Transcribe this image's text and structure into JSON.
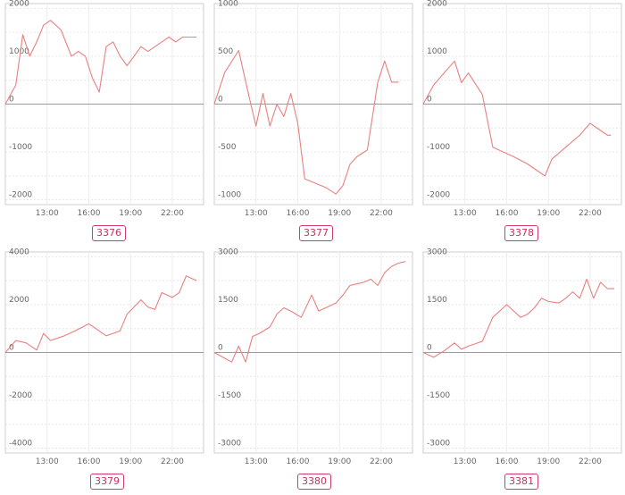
{
  "chart_data": [
    {
      "type": "line",
      "id_label": "3376",
      "y_ticks": [
        "2000",
        "1000",
        "0",
        "-1000",
        "-2000"
      ],
      "x_ticks": [
        "13:00",
        "16:00",
        "19:00",
        "22:00"
      ],
      "ylim": [
        -2100,
        2100
      ],
      "xlim": [
        10.0,
        24.25
      ],
      "grid": true,
      "x": [
        10.0,
        10.75,
        11.25,
        11.75,
        12.25,
        12.75,
        13.25,
        14.0,
        14.75,
        15.25,
        15.75,
        16.25,
        16.75,
        17.25,
        17.75,
        18.25,
        18.75,
        19.25,
        19.75,
        20.25,
        20.75,
        21.25,
        21.75,
        22.25,
        22.75,
        23.25,
        23.75
      ],
      "y": [
        0,
        400,
        1450,
        1000,
        1300,
        1650,
        1750,
        1550,
        1000,
        1100,
        1000,
        550,
        250,
        1200,
        1300,
        1000,
        800,
        1000,
        1200,
        1100,
        1200,
        1300,
        1400,
        1300,
        1400,
        1400,
        1400
      ],
      "series": [
        {
          "color": "#e8807f"
        }
      ]
    },
    {
      "type": "line",
      "id_label": "3377",
      "y_ticks": [
        "1000",
        "500",
        "0",
        "-500",
        "-1000"
      ],
      "x_ticks": [
        "13:00",
        "16:00",
        "19:00",
        "22:00"
      ],
      "ylim": [
        -1050,
        1050
      ],
      "xlim": [
        10.0,
        24.25
      ],
      "grid": true,
      "x": [
        10.0,
        10.75,
        11.75,
        12.5,
        13.0,
        13.5,
        14.0,
        14.5,
        15.0,
        15.5,
        16.0,
        16.5,
        18.0,
        18.75,
        19.25,
        19.75,
        20.25,
        21.0,
        21.75,
        22.25,
        22.75,
        23.25
      ],
      "y": [
        0,
        330,
        560,
        80,
        -230,
        110,
        -230,
        0,
        -130,
        110,
        -200,
        -780,
        -870,
        -940,
        -850,
        -630,
        -550,
        -480,
        230,
        450,
        230,
        230
      ],
      "series": [
        {
          "color": "#e8807f"
        }
      ]
    },
    {
      "type": "line",
      "id_label": "3378",
      "y_ticks": [
        "2000",
        "1000",
        "0",
        "-1000",
        "-2000"
      ],
      "x_ticks": [
        "13:00",
        "16:00",
        "19:00",
        "22:00"
      ],
      "ylim": [
        -2100,
        2100
      ],
      "xlim": [
        10.0,
        24.25
      ],
      "grid": true,
      "x": [
        10.0,
        10.75,
        11.5,
        12.25,
        12.75,
        13.25,
        14.25,
        15.0,
        16.5,
        17.5,
        18.25,
        18.75,
        19.25,
        20.25,
        21.25,
        22.0,
        22.75,
        23.25,
        23.5
      ],
      "y": [
        0,
        400,
        650,
        900,
        450,
        650,
        200,
        -900,
        -1100,
        -1250,
        -1400,
        -1500,
        -1150,
        -900,
        -650,
        -400,
        -550,
        -650,
        -650
      ],
      "series": [
        {
          "color": "#e8807f"
        }
      ]
    },
    {
      "type": "line",
      "id_label": "3379",
      "y_ticks": [
        "4000",
        "2000",
        "0",
        "-2000",
        "-4000"
      ],
      "x_ticks": [
        "13:00",
        "16:00",
        "19:00",
        "22:00"
      ],
      "ylim": [
        -4200,
        4200
      ],
      "xlim": [
        10.0,
        24.25
      ],
      "grid": true,
      "x": [
        10.0,
        10.75,
        11.5,
        12.25,
        12.75,
        13.25,
        14.25,
        15.0,
        16.0,
        16.5,
        17.25,
        18.25,
        18.75,
        19.25,
        19.75,
        20.25,
        20.75,
        21.25,
        22.0,
        22.5,
        23.0,
        23.75
      ],
      "y": [
        0,
        500,
        400,
        100,
        800,
        500,
        700,
        900,
        1200,
        1000,
        700,
        900,
        1600,
        1900,
        2200,
        1900,
        1800,
        2500,
        2300,
        2500,
        3200,
        3000
      ],
      "series": [
        {
          "color": "#e8807f"
        }
      ]
    },
    {
      "type": "line",
      "id_label": "3380",
      "y_ticks": [
        "3000",
        "1500",
        "0",
        "-1500",
        "-3000"
      ],
      "x_ticks": [
        "13:00",
        "16:00",
        "19:00",
        "22:00"
      ],
      "ylim": [
        -3150,
        3150
      ],
      "xlim": [
        10.0,
        24.25
      ],
      "grid": true,
      "x": [
        10.0,
        11.25,
        11.75,
        12.25,
        12.75,
        13.25,
        14.0,
        14.5,
        15.0,
        15.5,
        16.25,
        17.0,
        17.5,
        18.25,
        18.75,
        19.25,
        19.75,
        20.25,
        20.75,
        21.25,
        21.75,
        22.25,
        22.75,
        23.25,
        23.75
      ],
      "y": [
        0,
        -300,
        200,
        -300,
        500,
        600,
        800,
        1200,
        1400,
        1300,
        1100,
        1800,
        1300,
        1450,
        1550,
        1800,
        2100,
        2150,
        2200,
        2300,
        2100,
        2500,
        2700,
        2800,
        2850
      ],
      "series": [
        {
          "color": "#e8807f"
        }
      ]
    },
    {
      "type": "line",
      "id_label": "3381",
      "y_ticks": [
        "3000",
        "1500",
        "0",
        "-1500",
        "-3000"
      ],
      "x_ticks": [
        "13:00",
        "16:00",
        "19:00",
        "22:00"
      ],
      "ylim": [
        -3150,
        3150
      ],
      "xlim": [
        10.0,
        24.25
      ],
      "grid": true,
      "x": [
        10.0,
        10.75,
        11.5,
        12.25,
        12.75,
        13.25,
        14.25,
        15.0,
        15.5,
        16.0,
        16.5,
        17.0,
        17.5,
        18.0,
        18.5,
        19.0,
        19.75,
        20.25,
        20.75,
        21.25,
        21.75,
        22.25,
        22.75,
        23.25,
        23.75
      ],
      "y": [
        0,
        -150,
        50,
        300,
        100,
        200,
        350,
        1100,
        1300,
        1500,
        1300,
        1100,
        1200,
        1400,
        1700,
        1600,
        1550,
        1700,
        1900,
        1700,
        2300,
        1700,
        2200,
        2000,
        2000
      ],
      "series": [
        {
          "color": "#e8807f"
        }
      ]
    }
  ]
}
